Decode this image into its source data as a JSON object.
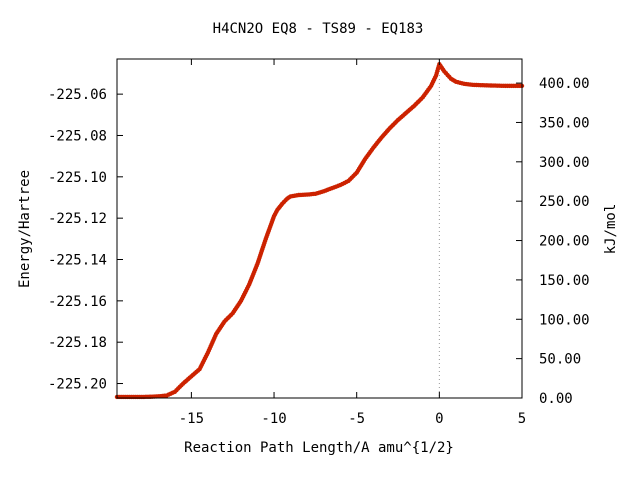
{
  "chart_data": {
    "type": "scatter",
    "title": "H4CN2O   EQ8 - TS89 - EQ183",
    "xlabel": "Reaction Path Length/A amu^{1/2}",
    "ylabel": "Energy/Hartree",
    "y2label": "kJ/mol",
    "xlim": [
      -19.5,
      5
    ],
    "ylim": [
      -225.207,
      -225.043
    ],
    "y2lim": [
      0,
      430.6
    ],
    "xticks": [
      -15,
      -10,
      -5,
      0,
      5
    ],
    "xtick_labels": [
      "-15",
      "-10",
      "-5",
      "0",
      "5"
    ],
    "yticks": [
      -225.06,
      -225.08,
      -225.1,
      -225.12,
      -225.14,
      -225.16,
      -225.18,
      -225.2
    ],
    "ytick_labels": [
      "-225.06",
      "-225.08",
      "-225.10",
      "-225.12",
      "-225.14",
      "-225.16",
      "-225.18",
      "-225.20"
    ],
    "y2ticks": [
      0,
      50,
      100,
      150,
      200,
      250,
      300,
      350,
      400
    ],
    "y2tick_labels": [
      "0.00",
      "50.00",
      "100.00",
      "150.00",
      "200.00",
      "250.00",
      "300.00",
      "350.00",
      "400.00"
    ],
    "ts_marker_x": 0,
    "grid": false,
    "legend": "none",
    "colors": {
      "marker": "#cc2200",
      "line": "#2e7d32",
      "ts_line": "#999999",
      "axes": "#000000"
    },
    "series": [
      {
        "x": [
          -19.5,
          -18.5,
          -18.0,
          -17.5,
          -17.0,
          -16.5,
          -16.0,
          -15.5,
          -15.0,
          -14.5,
          -14.0,
          -13.5,
          -13.0,
          -12.5,
          -12.0,
          -11.5,
          -11.0,
          -10.5,
          -10.0,
          -9.8,
          -9.5,
          -9.2,
          -9.0,
          -8.5,
          -8.0,
          -7.5,
          -7.0,
          -6.5,
          -6.0,
          -5.5,
          -5.0,
          -4.5,
          -4.0,
          -3.5,
          -3.0,
          -2.5,
          -2.0,
          -1.5,
          -1.0,
          -0.5,
          -0.2,
          0.0,
          0.3,
          0.7,
          1.0,
          1.5,
          2.0,
          3.0,
          4.0,
          5.0
        ],
        "y": [
          -225.2065,
          -225.2065,
          -225.2065,
          -225.2064,
          -225.2062,
          -225.2058,
          -225.204,
          -225.2,
          -225.1965,
          -225.193,
          -225.185,
          -225.176,
          -225.17,
          -225.166,
          -225.16,
          -225.152,
          -225.142,
          -225.13,
          -225.119,
          -225.116,
          -225.113,
          -225.1105,
          -225.1095,
          -225.1088,
          -225.1086,
          -225.1082,
          -225.107,
          -225.1055,
          -225.104,
          -225.102,
          -225.098,
          -225.0915,
          -225.086,
          -225.081,
          -225.0765,
          -225.0725,
          -225.069,
          -225.0655,
          -225.0615,
          -225.056,
          -225.051,
          -225.0455,
          -225.049,
          -225.0525,
          -225.054,
          -225.055,
          -225.0555,
          -225.0558,
          -225.056,
          -225.056
        ]
      }
    ]
  }
}
